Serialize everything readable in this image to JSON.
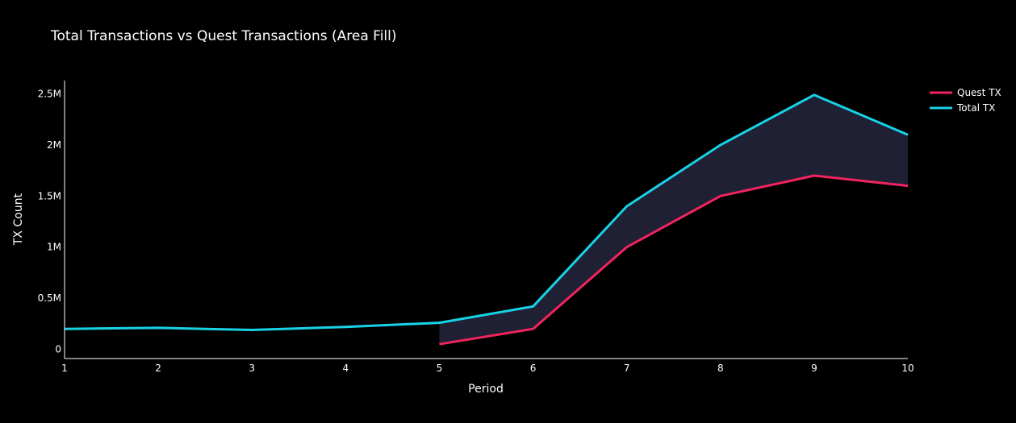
{
  "chart_data": {
    "type": "line",
    "title": "Total Transactions vs Quest Transactions (Area Fill)",
    "xlabel": "Period",
    "ylabel": "TX Count",
    "x": [
      1,
      2,
      3,
      4,
      5,
      6,
      7,
      8,
      9,
      10
    ],
    "xlim": [
      1,
      10
    ],
    "ylim": [
      -90000,
      2630000
    ],
    "x_ticks": [
      1,
      2,
      3,
      4,
      5,
      6,
      7,
      8,
      9,
      10
    ],
    "x_tick_labels": [
      "1",
      "2",
      "3",
      "4",
      "5",
      "6",
      "7",
      "8",
      "9",
      "10"
    ],
    "y_ticks": [
      0,
      500000,
      1000000,
      1500000,
      2000000,
      2500000
    ],
    "y_tick_labels": [
      "0",
      "0.5M",
      "1M",
      "1.5M",
      "2M",
      "2.5M"
    ],
    "grid": false,
    "legend_position": "top-right",
    "fill_between": {
      "upper": "Total TX",
      "lower": "Quest TX",
      "x_range": [
        5,
        10
      ],
      "color": "#1f2033"
    },
    "series": [
      {
        "name": "Quest TX",
        "color": "#f0245f",
        "x": [
          5,
          6,
          7,
          8,
          9,
          10
        ],
        "values": [
          50000,
          200000,
          1000000,
          1500000,
          1700000,
          1600000
        ]
      },
      {
        "name": "Total TX",
        "color": "#18d2e6",
        "x": [
          1,
          2,
          3,
          4,
          5,
          6,
          7,
          8,
          9,
          10
        ],
        "values": [
          200000,
          210000,
          190000,
          220000,
          260000,
          420000,
          1400000,
          2000000,
          2490000,
          2100000
        ]
      }
    ]
  }
}
